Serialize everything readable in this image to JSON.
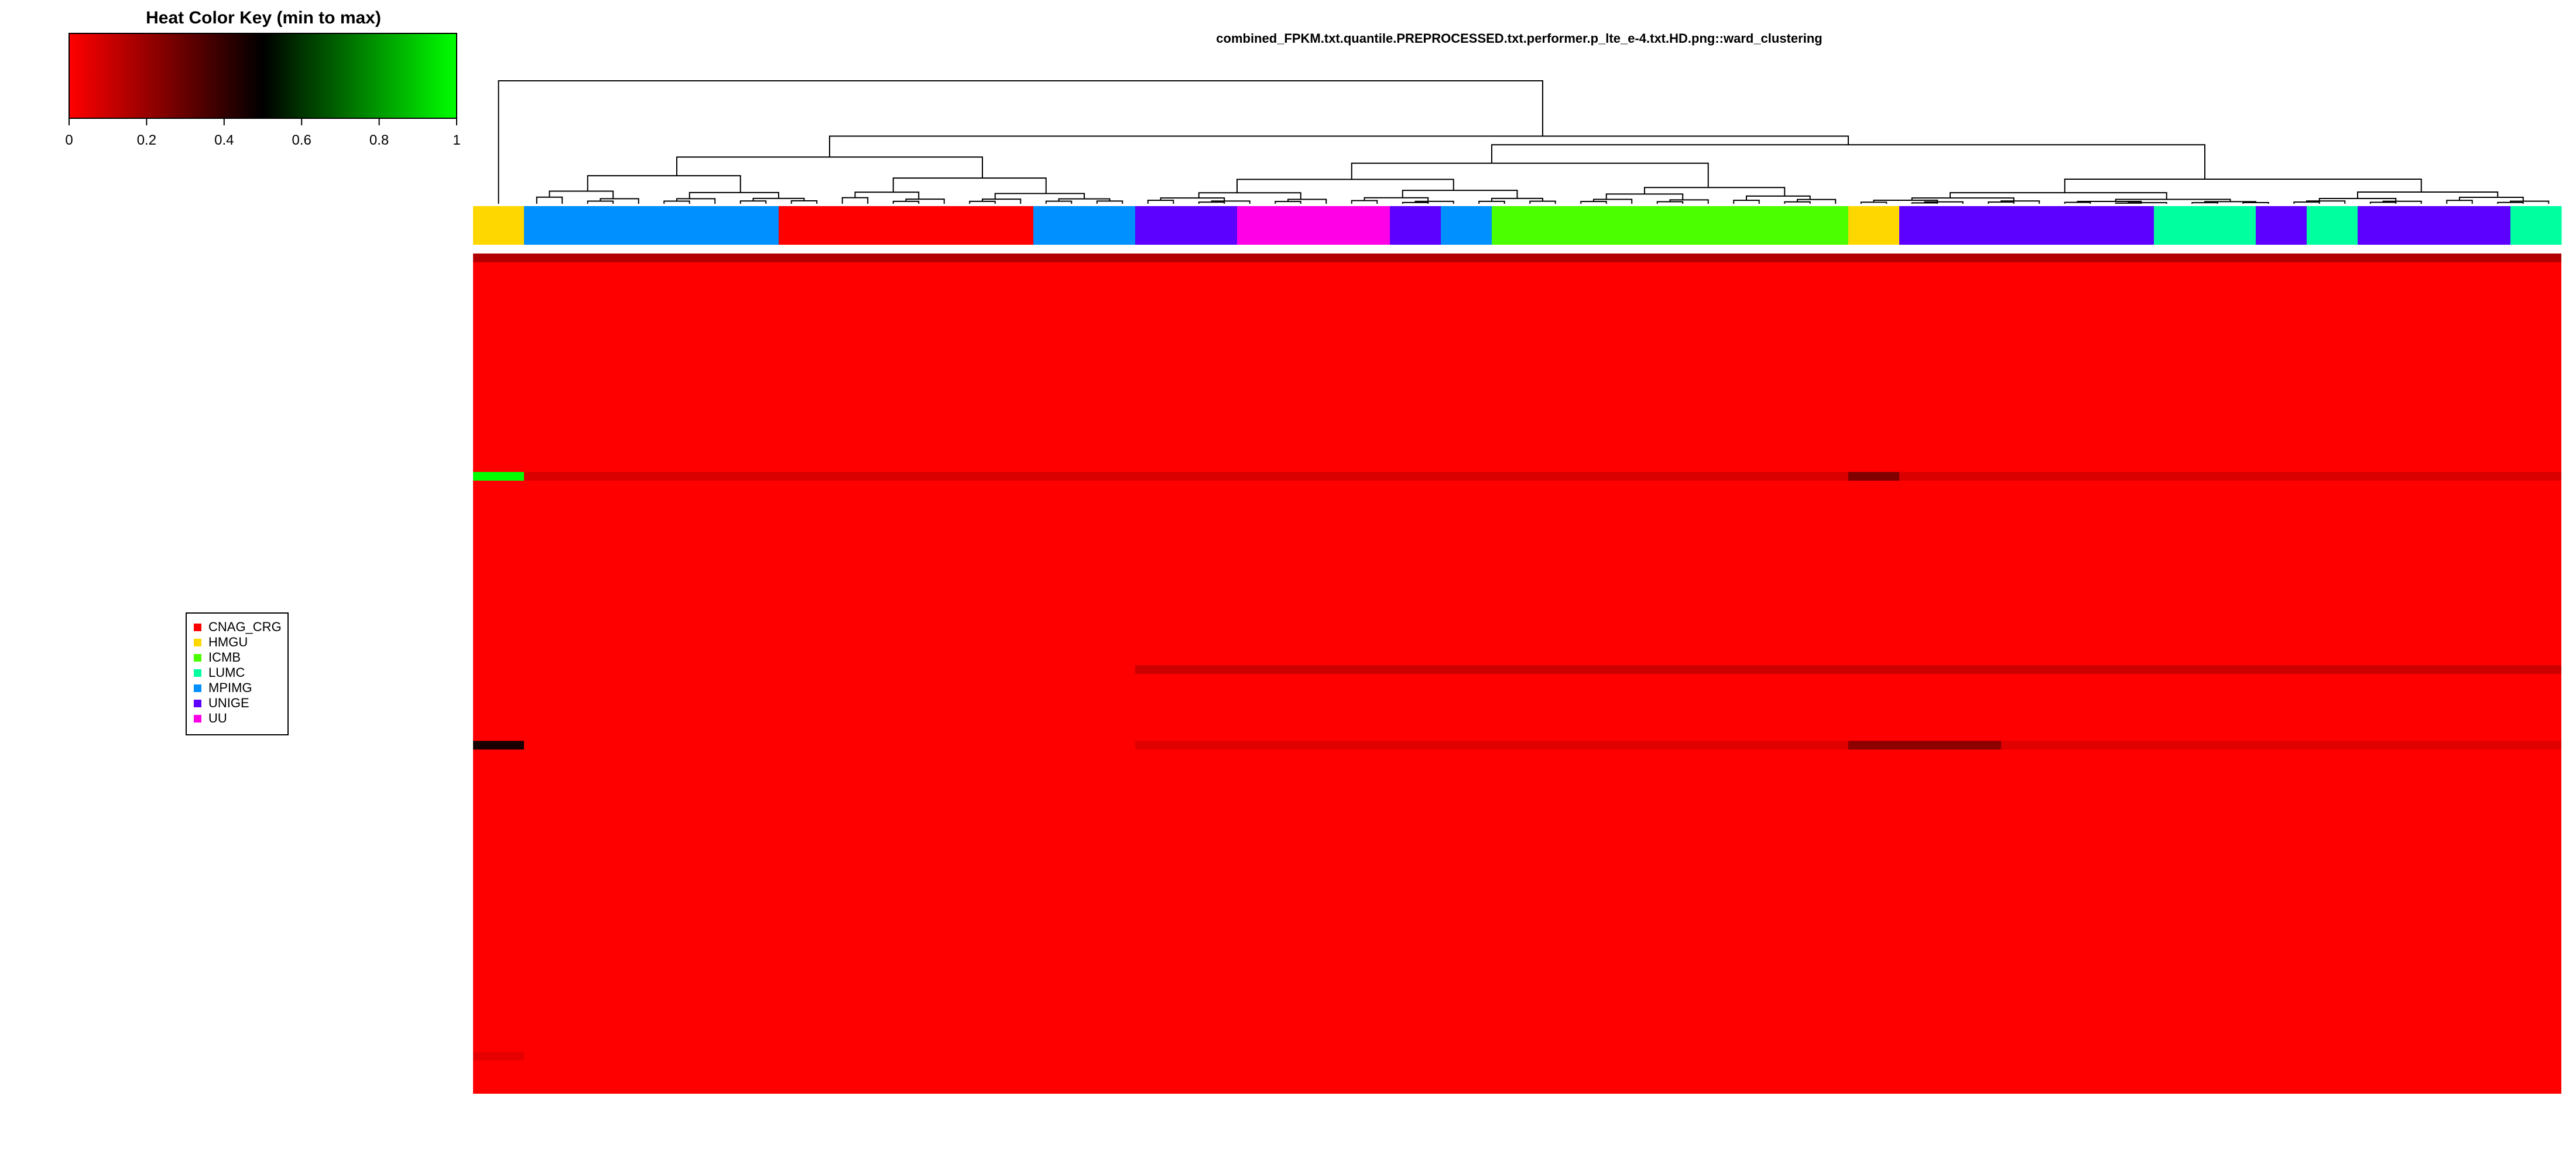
{
  "chart_data": {
    "type": "heatmap",
    "title": "combined_FPKM.txt.quantile.PREPROCESSED.txt.performer.p_lte_e-4.txt.HD.png::ward_clustering",
    "color_key": {
      "title": "Heat Color Key (min to max)",
      "ticks": [
        "0",
        "0.2",
        "0.4",
        "0.6",
        "0.8",
        "1"
      ],
      "tick_values": [
        0,
        0.2,
        0.4,
        0.6,
        0.8,
        1
      ],
      "colors": [
        "#ff0000",
        "#000000",
        "#00ff00"
      ]
    },
    "legend": {
      "placement": "left-middle",
      "entries": [
        {
          "label": "CNAG_CRG",
          "color": "#ff0000"
        },
        {
          "label": "HMGU",
          "color": "#ffd700"
        },
        {
          "label": "ICMB",
          "color": "#4cff00"
        },
        {
          "label": "LUMC",
          "color": "#00ff9f"
        },
        {
          "label": "MPIMG",
          "color": "#0090ff"
        },
        {
          "label": "UNIGE",
          "color": "#5c00ff"
        },
        {
          "label": "UU",
          "color": "#ff00e6"
        }
      ]
    },
    "column_groups": [
      {
        "group": "HMGU",
        "count": 2
      },
      {
        "group": "MPIMG",
        "count": 10
      },
      {
        "group": "CNAG_CRG",
        "count": 10
      },
      {
        "group": "MPIMG",
        "count": 4
      },
      {
        "group": "UNIGE",
        "count": 4
      },
      {
        "group": "UU",
        "count": 6
      },
      {
        "group": "UNIGE",
        "count": 2
      },
      {
        "group": "MPIMG",
        "count": 2
      },
      {
        "group": "ICMB",
        "count": 14
      },
      {
        "group": "HMGU",
        "count": 2
      },
      {
        "group": "UNIGE",
        "count": 10
      },
      {
        "group": "LUMC",
        "count": 4
      },
      {
        "group": "UNIGE",
        "count": 2
      },
      {
        "group": "LUMC",
        "count": 2
      },
      {
        "group": "UNIGE",
        "count": 6
      },
      {
        "group": "LUMC",
        "count": 2
      }
    ],
    "n_columns": 82,
    "n_rows": 100,
    "base_value": 0.0,
    "highlight_rows": [
      {
        "row": 0,
        "value": 0.15,
        "cols": [
          0,
          82
        ]
      },
      {
        "row": 26,
        "value": 0.07,
        "cols": [
          0,
          82
        ]
      },
      {
        "row": 49,
        "value": 0.1,
        "cols": [
          26,
          82
        ]
      },
      {
        "row": 58,
        "value": 0.06,
        "cols": [
          26,
          82
        ]
      },
      {
        "row": 95,
        "value": 0.05,
        "cols": [
          0,
          2
        ]
      }
    ],
    "special_cells": [
      {
        "row": 26,
        "cols": [
          0,
          2
        ],
        "value": 1.0
      },
      {
        "row": 58,
        "cols": [
          0,
          2
        ],
        "value": 0.45
      },
      {
        "row": 26,
        "cols": [
          54,
          56
        ],
        "value": 0.25
      },
      {
        "row": 58,
        "cols": [
          54,
          60
        ],
        "value": 0.22
      }
    ],
    "dendrogram": {
      "root": {
        "left_end": 2,
        "right_end": 82
      },
      "main_splits": [
        {
          "span": [
            0,
            2
          ],
          "height": 1.0
        },
        {
          "span": [
            2,
            82
          ],
          "height": 0.55
        },
        {
          "span": [
            2,
            26
          ],
          "height": 0.38
        },
        {
          "span": [
            26,
            82
          ],
          "height": 0.48
        },
        {
          "span": [
            26,
            54
          ],
          "height": 0.33
        },
        {
          "span": [
            54,
            82
          ],
          "height": 0.2
        }
      ]
    }
  }
}
